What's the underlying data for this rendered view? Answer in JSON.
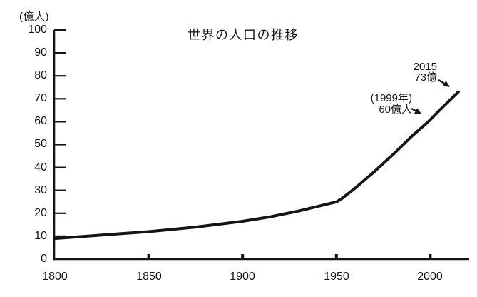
{
  "title": "世界の人口の推移",
  "y_axis": {
    "unit_label": "(億人)",
    "ticks": [
      "100",
      "90",
      "80",
      "70",
      "60",
      "50",
      "40",
      "30",
      "20",
      "10",
      "0"
    ]
  },
  "x_axis": {
    "ticks": [
      "1800",
      "1850",
      "1900",
      "1950",
      "2000"
    ]
  },
  "annotations": {
    "a2015_line1": "2015",
    "a2015_line2": "73億",
    "a1999_line1": "(1999年)",
    "a1999_line2": "60億人"
  },
  "colors": {
    "ink": "#151515",
    "background": "#ffffff"
  },
  "chart_data": {
    "type": "line",
    "title": "世界の人口の推移",
    "xlabel": "",
    "ylabel": "億人",
    "xlim": [
      1800,
      2020
    ],
    "ylim": [
      0,
      100
    ],
    "grid": false,
    "x_tick_values": [
      1800,
      1850,
      1900,
      1950,
      2000
    ],
    "y_tick_values": [
      0,
      10,
      20,
      30,
      40,
      50,
      60,
      70,
      80,
      90,
      100
    ],
    "x": [
      1800,
      1825,
      1850,
      1875,
      1900,
      1915,
      1930,
      1940,
      1950,
      1953,
      1960,
      1970,
      1980,
      1990,
      1999,
      2005,
      2010,
      2015
    ],
    "values": [
      9,
      10.5,
      12,
      14,
      16.5,
      18.5,
      21,
      23,
      25,
      26.5,
      31,
      38,
      45.5,
      53.5,
      60,
      65,
      69,
      73
    ],
    "annotations": [
      {
        "text": "2015 73億",
        "x": 2015,
        "y": 73
      },
      {
        "text": "(1999年) 60億人",
        "x": 1999,
        "y": 60
      }
    ]
  }
}
